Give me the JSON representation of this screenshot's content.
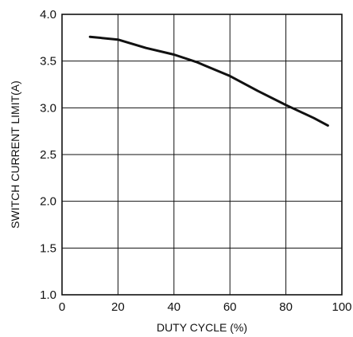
{
  "chart_data": {
    "type": "line",
    "title": "",
    "xlabel": "DUTY CYCLE (%)",
    "ylabel": "SWITCH CURRENT  LIMIT(A)",
    "xlim": [
      0,
      100
    ],
    "ylim": [
      1.0,
      4.0
    ],
    "xticks": [
      0,
      20,
      40,
      60,
      80,
      100
    ],
    "yticks": [
      1.0,
      1.5,
      2.0,
      2.5,
      3.0,
      3.5,
      4.0
    ],
    "xtick_labels": [
      "0",
      "20",
      "40",
      "60",
      "80",
      "100"
    ],
    "ytick_labels": [
      "1.0",
      "1.5",
      "2.0",
      "2.5",
      "3.0",
      "3.5",
      "4.0"
    ],
    "grid": true,
    "legend": "none",
    "series": [
      {
        "color": "#111111",
        "x": [
          10,
          20,
          30,
          40,
          48,
          60,
          70,
          80,
          90,
          95
        ],
        "y": [
          3.76,
          3.73,
          3.64,
          3.57,
          3.49,
          3.34,
          3.18,
          3.03,
          2.89,
          2.81
        ]
      }
    ]
  }
}
